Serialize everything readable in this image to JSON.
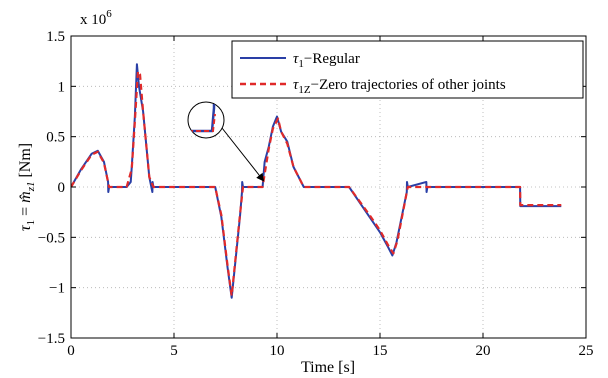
{
  "chart_data": {
    "type": "line",
    "title": "",
    "xlabel": "Time [s]",
    "ylabel_parts": {
      "tau": "τ",
      "sub1": "1",
      "eq": " = ",
      "m": "m̂",
      "subz1": "z1",
      "unit": " [Nm]"
    },
    "xlim": [
      0,
      25
    ],
    "ylim": [
      -1.5,
      1.5
    ],
    "y_multiplier_label": {
      "base": "x 10",
      "exponent": "6"
    },
    "xticks": [
      0,
      5,
      10,
      15,
      20,
      25
    ],
    "yticks": [
      -1.5,
      -1,
      -0.5,
      0,
      0.5,
      1,
      1.5
    ],
    "xtick_labels": [
      "0",
      "5",
      "10",
      "15",
      "20",
      "25"
    ],
    "ytick_labels": [
      "−1.5",
      "−1",
      "−0.5",
      "0",
      "0.5",
      "1",
      "1.5"
    ],
    "grid": true,
    "legend_position": "top-right",
    "series": [
      {
        "legend_main": "τ",
        "legend_sub": "1",
        "legend_rest": "−Regular",
        "color": "#2a3fa6",
        "style": "solid",
        "x": [
          0,
          0.5,
          1.0,
          1.3,
          1.6,
          1.8,
          1.81,
          1.85,
          2.7,
          2.9,
          2.95,
          3.1,
          3.2,
          3.3,
          3.5,
          3.8,
          3.95,
          3.96,
          4.0,
          7.0,
          7.3,
          7.6,
          7.8,
          8.0,
          8.2,
          8.3,
          8.31,
          8.35,
          9.3,
          9.4,
          9.6,
          9.8,
          10.0,
          10.2,
          10.5,
          10.8,
          11.3,
          11.5,
          13.5,
          14.5,
          15.0,
          15.4,
          15.6,
          15.8,
          16.2,
          16.3,
          16.31,
          16.35,
          17.25,
          17.26,
          17.3,
          21.8,
          21.81,
          23.8
        ],
        "y": [
          0,
          0.18,
          0.33,
          0.36,
          0.25,
          0.05,
          -0.05,
          0,
          0,
          0.05,
          0.2,
          0.7,
          1.22,
          1.0,
          0.75,
          0.1,
          -0.05,
          0.05,
          0,
          0,
          -0.3,
          -0.8,
          -1.1,
          -0.7,
          -0.3,
          -0.05,
          0.05,
          0,
          0,
          0.25,
          0.4,
          0.6,
          0.7,
          0.55,
          0.45,
          0.2,
          0.0,
          0,
          0,
          -0.3,
          -0.45,
          -0.6,
          -0.68,
          -0.55,
          -0.15,
          -0.05,
          0.05,
          0,
          0.05,
          -0.05,
          0,
          0,
          -0.19,
          -0.19
        ]
      },
      {
        "legend_main": "τ",
        "legend_sub": "1Z",
        "legend_rest": "−Zero trajectories of other joints",
        "color": "#e02a2a",
        "style": "dashed",
        "x": [
          0,
          0.5,
          1.0,
          1.3,
          1.6,
          1.85,
          2.7,
          2.95,
          3.1,
          3.25,
          3.35,
          3.5,
          3.8,
          4.0,
          7.0,
          7.3,
          7.6,
          7.8,
          8.0,
          8.2,
          8.35,
          9.3,
          9.6,
          9.8,
          10.05,
          10.2,
          10.5,
          10.8,
          11.3,
          11.5,
          13.5,
          14.5,
          15.0,
          15.4,
          15.65,
          15.85,
          16.35,
          21.8,
          21.81,
          23.8
        ],
        "y": [
          0,
          0.17,
          0.32,
          0.35,
          0.24,
          0,
          0,
          0.18,
          0.65,
          1.15,
          1.12,
          0.75,
          0.1,
          0,
          0,
          -0.28,
          -0.78,
          -1.08,
          -0.68,
          -0.28,
          0,
          0,
          0.38,
          0.58,
          0.68,
          0.55,
          0.43,
          0.2,
          0.0,
          0,
          0,
          -0.28,
          -0.43,
          -0.58,
          -0.66,
          -0.53,
          0,
          0,
          -0.18,
          -0.18
        ]
      }
    ]
  }
}
